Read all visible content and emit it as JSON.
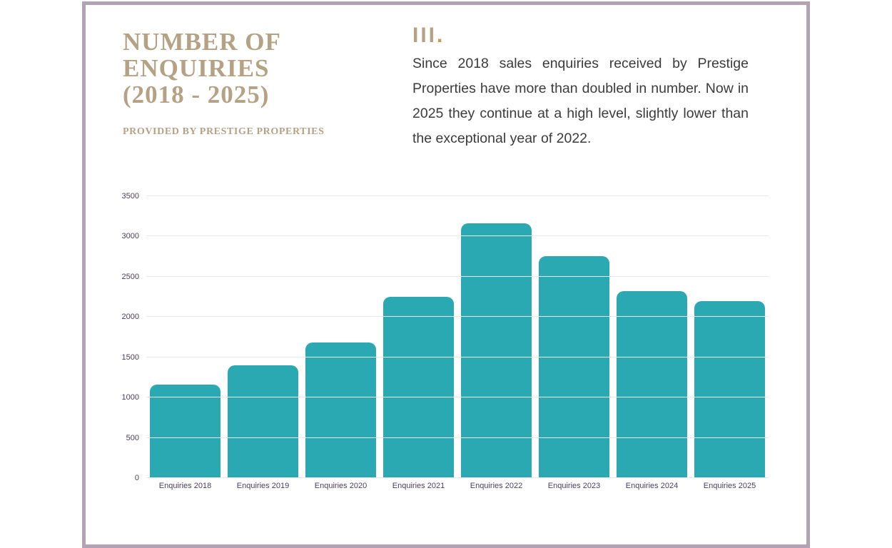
{
  "page": {
    "title_lines": [
      "NUMBER OF",
      "ENQUIRIES",
      "(2018 - 2025)"
    ],
    "subtitle": "PROVIDED BY PRESTIGE PROPERTIES",
    "section_heading": "III",
    "section_heading_dot": ".",
    "paragraph": "Since 2018 sales enquiries received by Prestige Properties have more than doubled in number. Now in 2025 they continue at a high level, slightly lower than the exceptional year of 2022."
  },
  "colors": {
    "accent_tan": "#B5A184",
    "heading_dot_gold": "#BF9F56",
    "bar_teal": "#2AA9B3",
    "frame_mauve": "#B2A3B2",
    "axis_text": "#4A3F5E",
    "gridline": "#E8E8EC",
    "body_text": "#3B3B3B"
  },
  "chart_data": {
    "type": "bar",
    "categories": [
      "Enquiries 2018",
      "Enquiries 2019",
      "Enquiries 2020",
      "Enquiries 2021",
      "Enquiries 2022",
      "Enquiries 2023",
      "Enquiries 2024",
      "Enquiries 2025"
    ],
    "values": [
      1160,
      1400,
      1680,
      2250,
      3160,
      2760,
      2320,
      2200
    ],
    "title": "Number of Enquiries (2018 - 2025)",
    "xlabel": "",
    "ylabel": "",
    "ylim": [
      0,
      3500
    ],
    "ytick_interval": 500,
    "yticks": [
      0,
      500,
      1000,
      1500,
      2000,
      2500,
      3000,
      3500
    ],
    "grid": true,
    "legend": "none",
    "bar_color": "#2AA9B3"
  }
}
